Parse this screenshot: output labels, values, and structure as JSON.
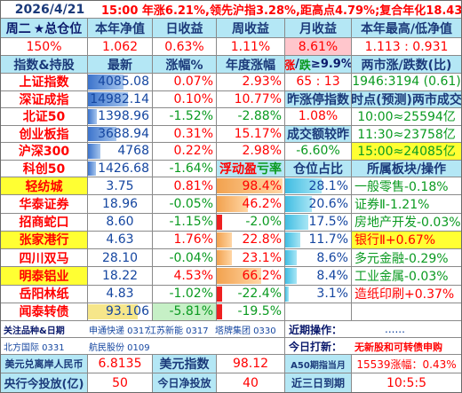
{
  "title_row": {
    "date": "2026/4/21",
    "summary": "15:00 年涨6.21%,领先沪指3.28%,距高点4.79%;复合年化18.43%"
  },
  "week_row": {
    "weekday": "周二",
    "total_position_label": "★总仓位",
    "nav_label": "本年净值",
    "day_return_label": "日收益",
    "week_return_label": "周收益",
    "month_return_label": "月收益",
    "high_low_label": "本年最高/低净值"
  },
  "week_values": {
    "total_position": "150%",
    "nav": "1.062",
    "day_return": "0.63%",
    "week_return": "1.11%",
    "month_return": "8.61%",
    "high_low": "1.113 : 0.931"
  },
  "index_header": {
    "name": "指数&持股",
    "latest": "最新",
    "change": "涨幅%",
    "year_change": "年度涨幅",
    "limit_label_a": "涨",
    "limit_label_sep": "/",
    "limit_label_b": "跌",
    "limit_label_c": "≥9.9%",
    "two_city": "两市涨/跌数(比)"
  },
  "indices": [
    {
      "name": "上证指数",
      "latest": "4085.08",
      "change": "0.07%",
      "year": "2.93%",
      "col5": "65 : 13",
      "col6": "1946:3194 (0.61)"
    },
    {
      "name": "深证成指",
      "latest": "14982.14",
      "change": "0.10%",
      "year": "10.77%",
      "col5": "昨涨停指数",
      "col6": "时点(预测)两市成交"
    },
    {
      "name": "北证50",
      "latest": "1398.96",
      "change": "-1.52%",
      "year": "-2.88%",
      "col5": "1.08%",
      "col6": "10:00≈25594亿"
    },
    {
      "name": "创业板指",
      "latest": "3688.94",
      "change": "0.31%",
      "year": "15.17%",
      "col5": "成交额较昨",
      "col6": "11:30≈23758亿"
    },
    {
      "name": "沪深300",
      "latest": "4768",
      "change": "0.22%",
      "year": "2.98%",
      "col5": "-6.60%",
      "col6": "15:00≈24085亿"
    },
    {
      "name": "科创50",
      "latest": "1426.68",
      "change": "-1.64%",
      "year_label_a": "浮动",
      "year_label_b": "盈",
      "year_label_c": "亏率",
      "col5": "仓位占比",
      "col6": "所属板块/操作"
    }
  ],
  "holdings": [
    {
      "name": "轻纺城",
      "latest": "3.75",
      "change": "0.81%",
      "float": "98.4%",
      "weight": "28.1%",
      "sector": "一般零售-0.18%"
    },
    {
      "name": "华泰证券",
      "latest": "18.96",
      "change": "-0.05%",
      "float": "46.2%",
      "weight": "20.6%",
      "sector": "证券Ⅱ-1.21%"
    },
    {
      "name": "招商蛇口",
      "latest": "8.60",
      "change": "-1.15%",
      "float": "-2.0%",
      "weight": "17.5%",
      "sector": "房地产开发-0.03%"
    },
    {
      "name": "张家港行",
      "latest": "4.63",
      "change": "1.76%",
      "float": "22.8%",
      "weight": "11.7%",
      "sector": "银行Ⅱ+0.67%"
    },
    {
      "name": "四川双马",
      "latest": "28.10",
      "change": "-0.04%",
      "float": "23.1%",
      "weight": "8.6%",
      "sector": "多元金融-0.29%"
    },
    {
      "name": "明泰铝业",
      "latest": "18.22",
      "change": "4.53%",
      "float": "66.2%",
      "weight": "8.4%",
      "sector": "工业金属-0.03%"
    },
    {
      "name": "岳阳林纸",
      "latest": "4.83",
      "change": "-1.02%",
      "float": "-22.4%",
      "weight": "3.1%",
      "sector": "造纸印刷+0.37%"
    },
    {
      "name": "闻泰转债",
      "latest": "93.106",
      "change": "-5.81%",
      "float": "-19.5%",
      "weight": "",
      "sector": ""
    }
  ],
  "footer_a": {
    "focus_label": "关注品种&日期",
    "focus_items_1": "申通快递 0317",
    "focus_items_2": "江苏新能 0317",
    "focus_items_3": "塔牌集团 0330",
    "focus_items_4": "北方国际 0331",
    "focus_items_5": "航民股份 0109",
    "recent_ops_label": "近期操作：",
    "recent_ops_value": "......",
    "today_label": "今日打新：",
    "today_value": "无新股和可转债申购"
  },
  "footer_b": {
    "usd_label": "美元兑离岸人民币",
    "usd_value": "6.8135",
    "dxy_label": "美元指数",
    "dxy_value": "98.12",
    "a50_label": "A50期指当月",
    "a50_value": "15539涨幅：0.43%"
  },
  "footer_c": {
    "pboc_label": "央行今投放(亿)",
    "pboc_value": "50",
    "today_net_label": "今日净投放",
    "today_net_value": "40",
    "recent3_label": "近三日到期",
    "recent3_value": "10:5:5"
  },
  "colors": {
    "header_bg": "#b4e7f5",
    "red": "#ff0000",
    "green": "#0a9a20",
    "yellow_highlight": "#ffff33",
    "pink_highlight": "#ffc6cc"
  },
  "bars": {
    "index_latest_fill": [
      0.55,
      0.62,
      0.14,
      0.45,
      0.2,
      0.13
    ],
    "holding_latest_fill": [
      0.0,
      0.0,
      0.0,
      0.0,
      0.0,
      0.0,
      0.0,
      0.78
    ],
    "float_fill": [
      0.98,
      0.46,
      0.03,
      0.23,
      0.23,
      0.66,
      0.22,
      0.19
    ],
    "weight_fill": [
      0.56,
      0.41,
      0.35,
      0.23,
      0.17,
      0.17,
      0.06,
      0.0
    ]
  }
}
